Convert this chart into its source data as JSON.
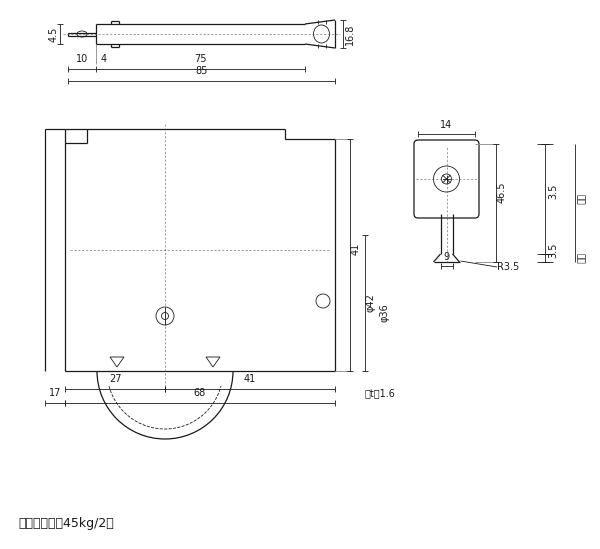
{
  "bg_color": "#ffffff",
  "line_color": "#1a1a1a",
  "font_size_dim": 7,
  "font_size_label": 9,
  "bottom_text": "標準耐荷重：45kg/2コ",
  "frame_note": "枠t＝1.6",
  "dim_45": "4.5",
  "dim_168": "16.8",
  "dim_4": "4",
  "dim_10": "10",
  "dim_75": "75",
  "dim_85": "85",
  "dim_41v": "41",
  "dim_phi42": "φ42",
  "dim_phi36": "φ36",
  "dim_27": "27",
  "dim_41h": "41",
  "dim_17": "17",
  "dim_68": "68",
  "dim_14": "14",
  "dim_465": "46.5",
  "dim_9": "9",
  "dim_R35": "R3.5",
  "dim_35a": "3.5",
  "dim_35b": "3.5",
  "label_frame": "枠穴",
  "label_groove": "戸溝"
}
